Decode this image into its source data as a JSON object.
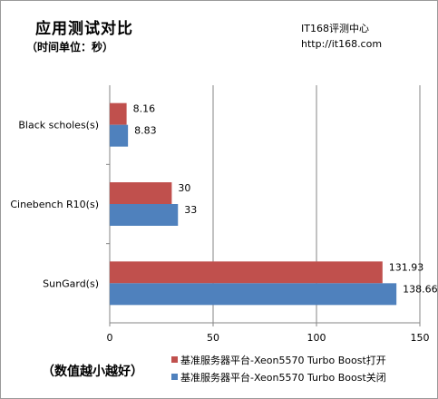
{
  "header": {
    "title": "应用测试对比",
    "subtitle": "（时间单位：秒）",
    "source": "IT168评测中心",
    "url": "http://it168.com"
  },
  "footer_note": "（数值越小越好）",
  "colors": {
    "series_on": "#c0504d",
    "series_off": "#4f81bd",
    "grid": "#868686",
    "axis": "#868686"
  },
  "chart_data": {
    "type": "bar",
    "orientation": "horizontal",
    "categories": [
      "Black scholes(s)",
      "Cinebench R10(s)",
      "SunGard(s)"
    ],
    "series": [
      {
        "name": "基准服务器平台-Xeon5570 Turbo Boost打开",
        "values": [
          8.16,
          30,
          131.93
        ],
        "labels": [
          "8.16",
          "30",
          "131.93"
        ]
      },
      {
        "name": "基准服务器平台-Xeon5570 Turbo Boost关闭",
        "values": [
          8.83,
          33,
          138.668
        ],
        "labels": [
          "8.83",
          "33",
          "138.668"
        ]
      }
    ],
    "xlim": [
      0,
      150
    ],
    "xticks": [
      "0",
      "50",
      "100",
      "150"
    ],
    "grid": true,
    "legend_position": "bottom-right"
  }
}
